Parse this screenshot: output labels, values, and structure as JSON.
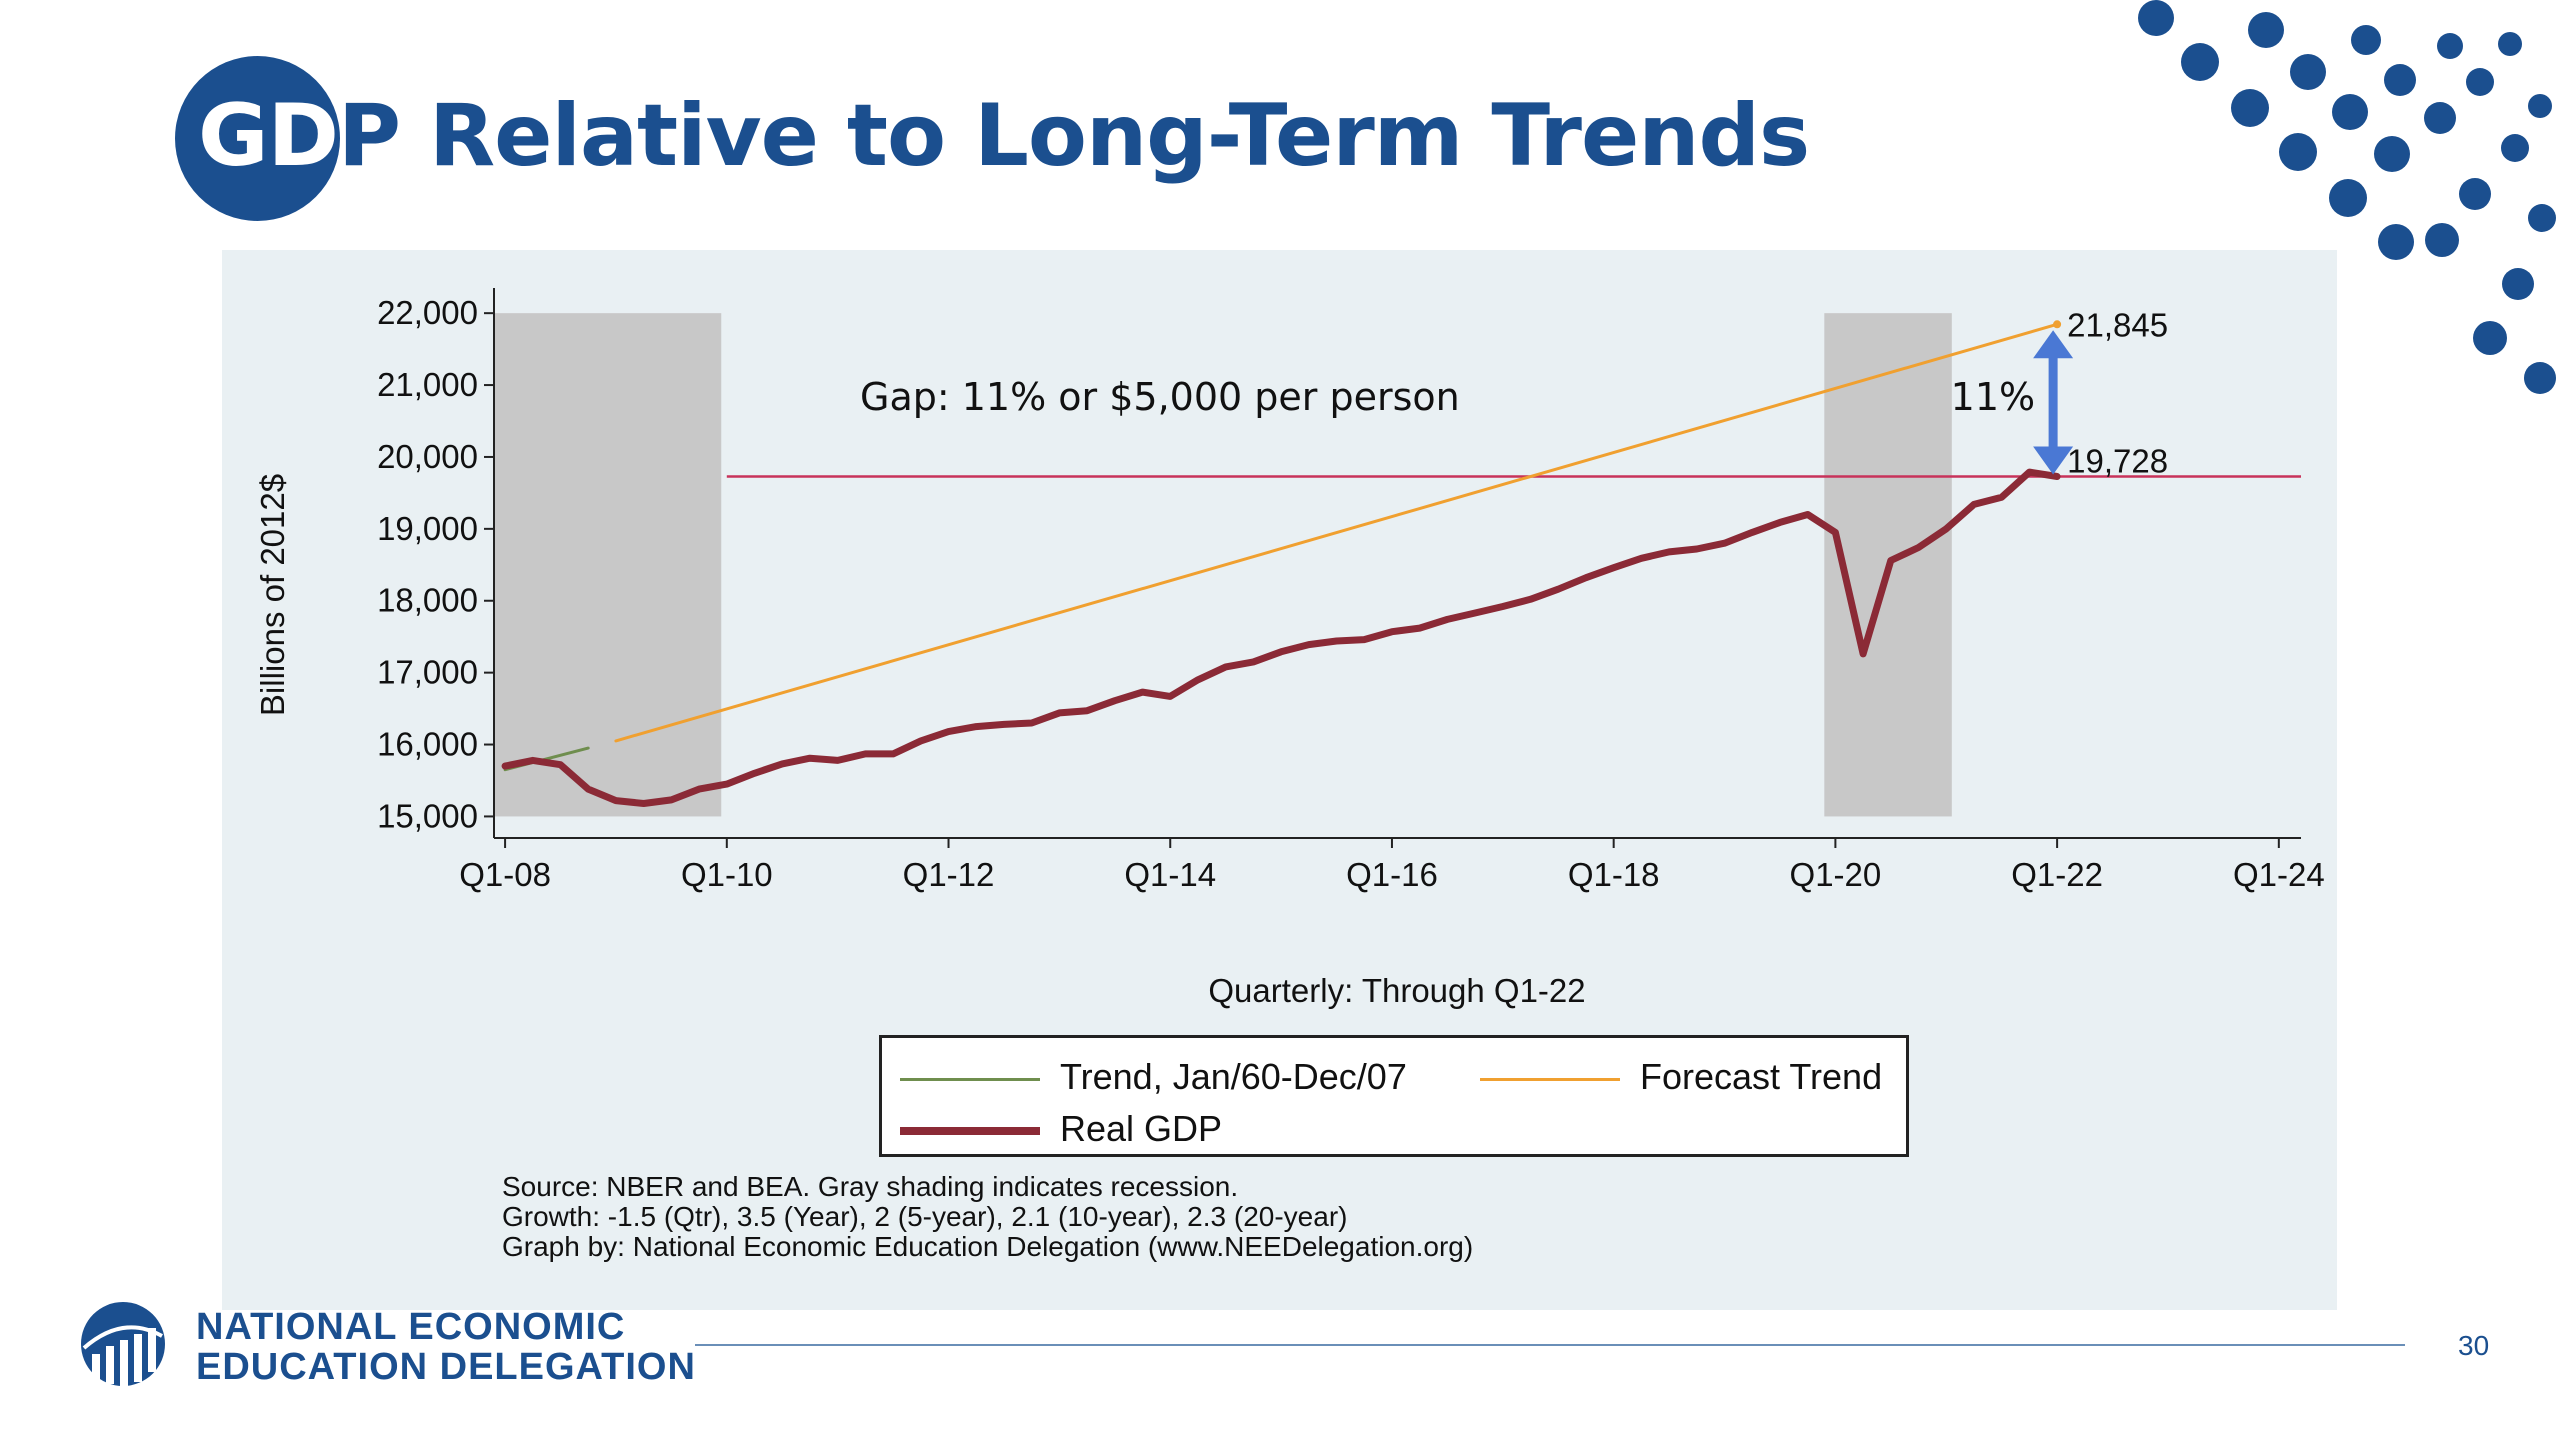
{
  "slide": {
    "title_prefix": "GD",
    "title_rest": "P Relative to Long-Term Trends",
    "page_number": "30",
    "brand_color": "#1b4f8f"
  },
  "organization": {
    "line1": "NATIONAL ECONOMIC",
    "line2": "EDUCATION DELEGATION",
    "logo_icon": "bar-chart-globe-icon"
  },
  "notes": {
    "source": "Source: NBER and BEA. Gray shading indicates recession.",
    "growth": "Growth: -1.5 (Qtr), 3.5 (Year), 2 (5-year), 2.1 (10-year), 2.3 (20-year)",
    "graph_by": "Graph by: National Economic Education Delegation (www.NEEDelegation.org)"
  },
  "chart_data": {
    "type": "line",
    "xlabel": "Quarterly: Through Q1-22",
    "ylabel": "Billions of 2012$",
    "xlim": [
      2007.9,
      2024.2
    ],
    "ylim": [
      14700,
      22350
    ],
    "x_ticks": [
      {
        "x": 2008,
        "label": "Q1-08"
      },
      {
        "x": 2010,
        "label": "Q1-10"
      },
      {
        "x": 2012,
        "label": "Q1-12"
      },
      {
        "x": 2014,
        "label": "Q1-14"
      },
      {
        "x": 2016,
        "label": "Q1-16"
      },
      {
        "x": 2018,
        "label": "Q1-18"
      },
      {
        "x": 2020,
        "label": "Q1-20"
      },
      {
        "x": 2022,
        "label": "Q1-22"
      },
      {
        "x": 2024,
        "label": "Q1-24"
      }
    ],
    "y_ticks": [
      {
        "y": 15000,
        "label": "15,000"
      },
      {
        "y": 16000,
        "label": "16,000"
      },
      {
        "y": 17000,
        "label": "17,000"
      },
      {
        "y": 18000,
        "label": "18,000"
      },
      {
        "y": 19000,
        "label": "19,000"
      },
      {
        "y": 20000,
        "label": "20,000"
      },
      {
        "y": 21000,
        "label": "21,000"
      },
      {
        "y": 22000,
        "label": "22,000"
      }
    ],
    "grid": false,
    "legend_placement": "bottom",
    "recessions": [
      [
        2007.9,
        2009.95
      ],
      [
        2019.9,
        2021.05
      ]
    ],
    "colors": {
      "real_gdp": "#8b2a36",
      "trend": "#6f8e4e",
      "forecast": "#f0a030",
      "reference": "#c8325a",
      "arrow": "#4a78d4",
      "recession": "#c8c8c8"
    },
    "series": [
      {
        "name": "Trend, Jan/60-Dec/07",
        "x": [
          2008.0,
          2008.75
        ],
        "y": [
          15650,
          15950
        ]
      },
      {
        "name": "Forecast Trend",
        "x": [
          2009.0,
          2022.0
        ],
        "y": [
          16050,
          21845
        ]
      },
      {
        "name": "Real GDP",
        "x": [
          2008.0,
          2008.25,
          2008.5,
          2008.75,
          2009.0,
          2009.25,
          2009.5,
          2009.75,
          2010.0,
          2010.25,
          2010.5,
          2010.75,
          2011.0,
          2011.25,
          2011.5,
          2011.75,
          2012.0,
          2012.25,
          2012.5,
          2012.75,
          2013.0,
          2013.25,
          2013.5,
          2013.75,
          2014.0,
          2014.25,
          2014.5,
          2014.75,
          2015.0,
          2015.25,
          2015.5,
          2015.75,
          2016.0,
          2016.25,
          2016.5,
          2016.75,
          2017.0,
          2017.25,
          2017.5,
          2017.75,
          2018.0,
          2018.25,
          2018.5,
          2018.75,
          2019.0,
          2019.25,
          2019.5,
          2019.75,
          2020.0,
          2020.25,
          2020.5,
          2020.75,
          2021.0,
          2021.25,
          2021.5,
          2021.75,
          2022.0
        ],
        "y": [
          15700,
          15780,
          15720,
          15380,
          15220,
          15180,
          15230,
          15380,
          15450,
          15600,
          15730,
          15810,
          15780,
          15870,
          15870,
          16050,
          16180,
          16250,
          16280,
          16300,
          16440,
          16470,
          16610,
          16730,
          16670,
          16900,
          17080,
          17150,
          17290,
          17390,
          17440,
          17460,
          17570,
          17620,
          17740,
          17830,
          17920,
          18020,
          18160,
          18320,
          18460,
          18590,
          18680,
          18720,
          18800,
          18950,
          19090,
          19200,
          18950,
          17260,
          18560,
          18740,
          19000,
          19340,
          19440,
          19790,
          19728
        ]
      }
    ],
    "reference_line": {
      "y": 19728,
      "x_from": 2010.0
    },
    "annotations": {
      "gap": "Gap: 11% or $5,000 per person",
      "percent": "11%",
      "forecast_end": "21,845",
      "actual_end": "19,728"
    }
  }
}
